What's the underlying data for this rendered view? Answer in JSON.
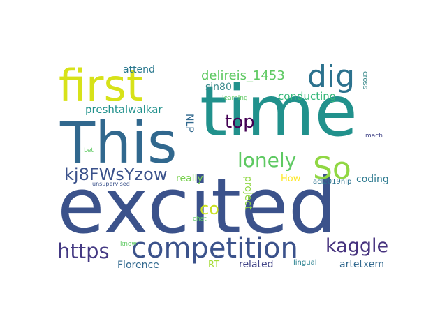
{
  "words": [
    {
      "text": "excited",
      "color": "#3b528b",
      "vertical": false
    },
    {
      "text": "time",
      "color": "#21918c",
      "vertical": false
    },
    {
      "text": "This",
      "color": "#31688e",
      "vertical": false
    },
    {
      "text": "first",
      "color": "#d7e219",
      "vertical": false
    },
    {
      "text": "competition",
      "color": "#3b528b",
      "vertical": false
    },
    {
      "text": "dig",
      "color": "#2c728e",
      "vertical": false
    },
    {
      "text": "So",
      "color": "#90d743",
      "vertical": false
    },
    {
      "text": "kaggle",
      "color": "#46327e",
      "vertical": false
    },
    {
      "text": "https",
      "color": "#443983",
      "vertical": false
    },
    {
      "text": "lonely",
      "color": "#5ec962",
      "vertical": false
    },
    {
      "text": "top",
      "color": "#440154",
      "vertical": false
    },
    {
      "text": "kj8FWsYzow",
      "color": "#3b528b",
      "vertical": false
    },
    {
      "text": "delireis_1453",
      "color": "#5ec962",
      "vertical": false
    },
    {
      "text": "co",
      "color": "#c8e020",
      "vertical": false
    },
    {
      "text": "preshtalwalkar",
      "color": "#21918c",
      "vertical": false
    },
    {
      "text": "conducting",
      "color": "#35b779",
      "vertical": false
    },
    {
      "text": "artetxem",
      "color": "#31688e",
      "vertical": false
    },
    {
      "text": "Florence",
      "color": "#31688e",
      "vertical": false
    },
    {
      "text": "coding",
      "color": "#2a788e",
      "vertical": false
    },
    {
      "text": "attend",
      "color": "#2a788e",
      "vertical": false
    },
    {
      "text": "sin80",
      "color": "#3b8a8c",
      "vertical": false
    },
    {
      "text": "related",
      "color": "#414487",
      "vertical": false
    },
    {
      "text": "really",
      "color": "#7ad151",
      "vertical": false
    },
    {
      "text": "project",
      "color": "#90d743",
      "vertical": true
    },
    {
      "text": "NLP",
      "color": "#31688e",
      "vertical": true
    },
    {
      "text": "RT",
      "color": "#a5db36",
      "vertical": false
    },
    {
      "text": "How",
      "color": "#fde725",
      "vertical": false
    },
    {
      "text": "acl2019nlp",
      "color": "#2c728e",
      "vertical": false
    },
    {
      "text": "lingual",
      "color": "#277f8e",
      "vertical": false
    },
    {
      "text": "chat",
      "color": "#5ec962",
      "vertical": false
    },
    {
      "text": "know",
      "color": "#5ec962",
      "vertical": false
    },
    {
      "text": "learning",
      "color": "#5ec962",
      "vertical": false
    },
    {
      "text": "cross",
      "color": "#3b8a8c",
      "vertical": true
    },
    {
      "text": "mach",
      "color": "#414487",
      "vertical": false
    },
    {
      "text": "Let",
      "color": "#5ec962",
      "vertical": false
    },
    {
      "text": "unsupervised",
      "color": "#3b528b",
      "vertical": false
    }
  ]
}
